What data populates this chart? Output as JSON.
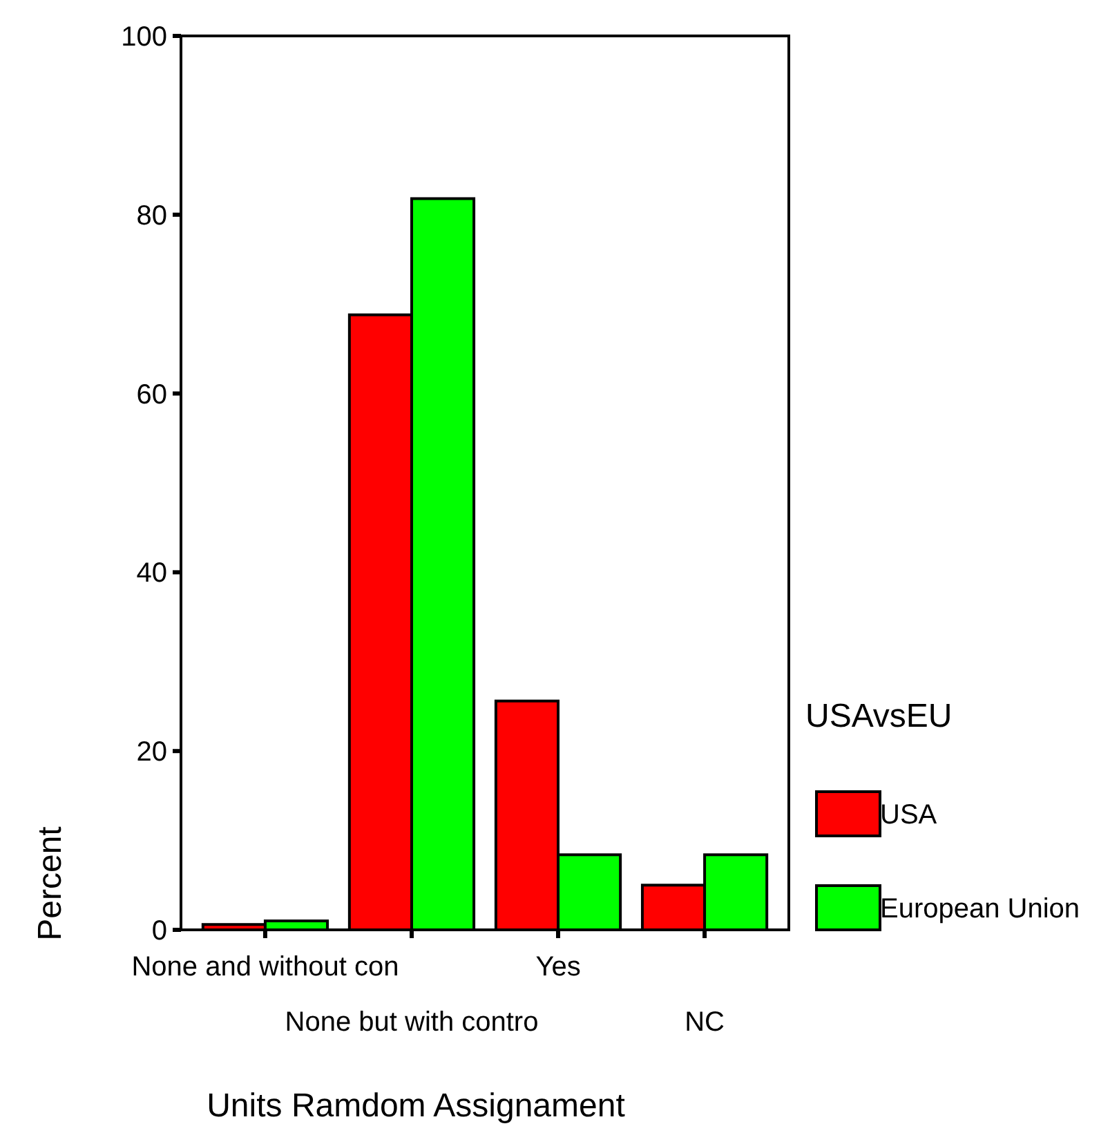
{
  "chart_data": {
    "type": "bar",
    "xlabel": "Units Ramdom Assignament",
    "ylabel": "Percent",
    "legend_title": "USAvsEU",
    "categories": [
      "None and without con",
      "None but with contro",
      "Yes",
      "NC"
    ],
    "series": [
      {
        "name": "USA",
        "color": "#ff0000",
        "values": [
          0.6,
          68.8,
          25.6,
          5.0
        ]
      },
      {
        "name": "European Union",
        "color": "#00ff00",
        "values": [
          1.0,
          81.8,
          8.4,
          8.4
        ]
      }
    ],
    "ylim": [
      0,
      100
    ],
    "yticks": [
      0,
      20,
      40,
      60,
      80,
      100
    ],
    "grid": false,
    "legend": "right"
  }
}
